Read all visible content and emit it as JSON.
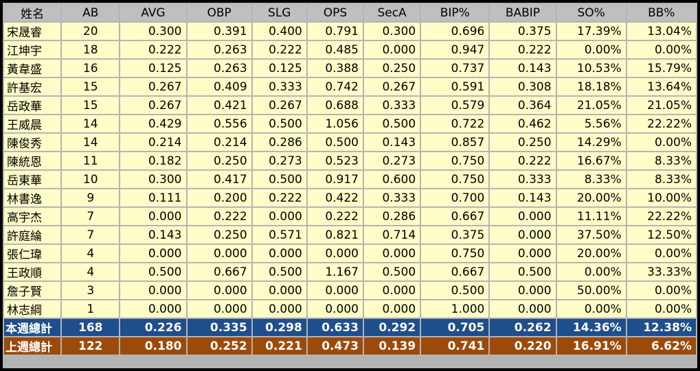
{
  "headers": [
    "姓名",
    "AB",
    "AVG",
    "OBP",
    "SLG",
    "OPS",
    "SecA",
    "BIP%",
    "BABIP",
    "SO%",
    "BB%"
  ],
  "rows": [
    [
      "宋晟睿",
      "20",
      "0.300",
      "0.391",
      "0.400",
      "0.791",
      "0.300",
      "0.696",
      "0.375",
      "17.39%",
      "13.04%"
    ],
    [
      "江坤宇",
      "18",
      "0.222",
      "0.263",
      "0.222",
      "0.485",
      "0.000",
      "0.947",
      "0.222",
      "0.00%",
      "0.00%"
    ],
    [
      "黃韋盛",
      "16",
      "0.125",
      "0.263",
      "0.125",
      "0.388",
      "0.250",
      "0.737",
      "0.143",
      "10.53%",
      "15.79%"
    ],
    [
      "許基宏",
      "15",
      "0.267",
      "0.409",
      "0.333",
      "0.742",
      "0.267",
      "0.591",
      "0.308",
      "18.18%",
      "13.64%"
    ],
    [
      "岳政華",
      "15",
      "0.267",
      "0.421",
      "0.267",
      "0.688",
      "0.333",
      "0.579",
      "0.364",
      "21.05%",
      "21.05%"
    ],
    [
      "王威晨",
      "14",
      "0.429",
      "0.556",
      "0.500",
      "1.056",
      "0.500",
      "0.722",
      "0.462",
      "5.56%",
      "22.22%"
    ],
    [
      "陳俊秀",
      "14",
      "0.214",
      "0.214",
      "0.286",
      "0.500",
      "0.143",
      "0.857",
      "0.250",
      "14.29%",
      "0.00%"
    ],
    [
      "陳統恩",
      "11",
      "0.182",
      "0.250",
      "0.273",
      "0.523",
      "0.273",
      "0.750",
      "0.222",
      "16.67%",
      "8.33%"
    ],
    [
      "岳東華",
      "10",
      "0.300",
      "0.417",
      "0.500",
      "0.917",
      "0.600",
      "0.750",
      "0.333",
      "8.33%",
      "8.33%"
    ],
    [
      "林書逸",
      "9",
      "0.111",
      "0.200",
      "0.222",
      "0.422",
      "0.333",
      "0.700",
      "0.143",
      "20.00%",
      "10.00%"
    ],
    [
      "高宇杰",
      "7",
      "0.000",
      "0.222",
      "0.000",
      "0.222",
      "0.286",
      "0.667",
      "0.000",
      "11.11%",
      "22.22%"
    ],
    [
      "許庭綸",
      "7",
      "0.143",
      "0.250",
      "0.571",
      "0.821",
      "0.714",
      "0.375",
      "0.000",
      "37.50%",
      "12.50%"
    ],
    [
      "張仁瑋",
      "4",
      "0.000",
      "0.000",
      "0.000",
      "0.000",
      "0.000",
      "0.750",
      "0.000",
      "20.00%",
      "0.00%"
    ],
    [
      "王政順",
      "4",
      "0.500",
      "0.667",
      "0.500",
      "1.167",
      "0.500",
      "0.667",
      "0.500",
      "0.00%",
      "33.33%"
    ],
    [
      "詹子賢",
      "3",
      "0.000",
      "0.000",
      "0.000",
      "0.000",
      "0.000",
      "0.500",
      "0.000",
      "50.00%",
      "0.00%"
    ],
    [
      "林志綱",
      "1",
      "0.000",
      "0.000",
      "0.000",
      "0.000",
      "0.000",
      "1.000",
      "0.000",
      "0.00%",
      "0.00%"
    ]
  ],
  "totals": [
    {
      "kind": "this-week",
      "cells": [
        "本週總計",
        "168",
        "0.226",
        "0.335",
        "0.298",
        "0.633",
        "0.292",
        "0.705",
        "0.262",
        "14.36%",
        "12.38%"
      ]
    },
    {
      "kind": "last-week",
      "cells": [
        "上週總計",
        "122",
        "0.180",
        "0.252",
        "0.221",
        "0.473",
        "0.139",
        "0.741",
        "0.220",
        "16.91%",
        "6.62%"
      ]
    }
  ],
  "colors": {
    "header_bg": "#bfbfbf",
    "row_bg": "#fffdc8",
    "this_week_bg": "#1f4e8c",
    "last_week_bg": "#9c4a0a"
  }
}
